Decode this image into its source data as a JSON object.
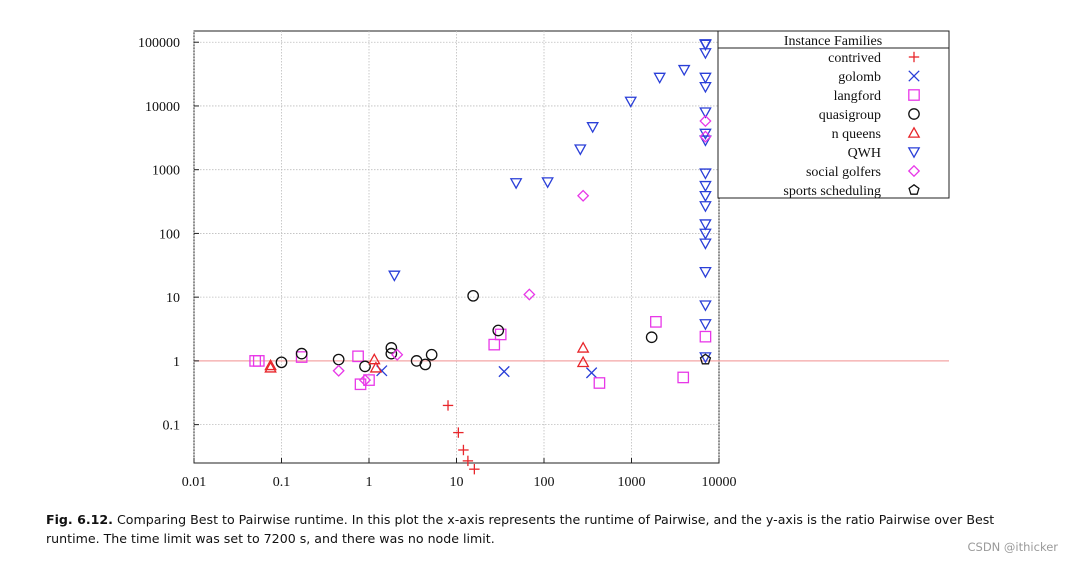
{
  "chart_data": {
    "type": "scatter",
    "title": "",
    "xlabel": "",
    "ylabel": "",
    "x_scale": "log",
    "y_scale": "log",
    "xlim": [
      0.01,
      10000
    ],
    "ylim": [
      0.025,
      150000
    ],
    "grid": true,
    "x_ticks": [
      "0.01",
      "0.1",
      "1",
      "10",
      "100",
      "1000",
      "10000"
    ],
    "y_ticks": [
      "0.1",
      "1",
      "10",
      "100",
      "1000",
      "10000",
      "100000"
    ],
    "reference_line": {
      "y": 1,
      "color": "#f4a6a6"
    },
    "legend": {
      "title": "Instance Families",
      "position": "top-right"
    },
    "series": [
      {
        "name": "contrived",
        "marker": "plus",
        "color": "#e8262b",
        "points": [
          [
            8,
            0.2
          ],
          [
            10.5,
            0.075
          ],
          [
            12,
            0.04
          ],
          [
            13.5,
            0.027
          ],
          [
            16,
            0.02
          ]
        ]
      },
      {
        "name": "golomb",
        "marker": "cross",
        "color": "#2a3fd8",
        "points": [
          [
            1.4,
            0.7
          ],
          [
            35,
            0.68
          ],
          [
            350,
            0.65
          ]
        ]
      },
      {
        "name": "langford",
        "marker": "square",
        "color": "#e838e8",
        "points": [
          [
            0.05,
            1.0
          ],
          [
            0.055,
            1.0
          ],
          [
            0.17,
            1.15
          ],
          [
            0.75,
            1.18
          ],
          [
            0.8,
            0.43
          ],
          [
            1.0,
            0.5
          ],
          [
            27,
            1.8
          ],
          [
            32,
            2.6
          ],
          [
            430,
            0.45
          ],
          [
            1900,
            4.1
          ],
          [
            3900,
            0.55
          ],
          [
            7000,
            2.4
          ]
        ]
      },
      {
        "name": "quasigroup",
        "marker": "circle",
        "color": "#111111",
        "points": [
          [
            0.1,
            0.95
          ],
          [
            0.17,
            1.3
          ],
          [
            0.45,
            1.05
          ],
          [
            0.9,
            0.82
          ],
          [
            1.8,
            1.3
          ],
          [
            1.8,
            1.6
          ],
          [
            3.5,
            1.0
          ],
          [
            4.4,
            0.88
          ],
          [
            5.2,
            1.25
          ],
          [
            15.5,
            10.5
          ],
          [
            30,
            3.0
          ],
          [
            1700,
            2.35
          ]
        ]
      },
      {
        "name": "n queens",
        "marker": "triangle",
        "color": "#e8262b",
        "points": [
          [
            0.075,
            0.85
          ],
          [
            0.075,
            0.78
          ],
          [
            1.15,
            1.05
          ],
          [
            1.2,
            0.78
          ],
          [
            280,
            1.6
          ],
          [
            280,
            0.95
          ]
        ]
      },
      {
        "name": "QWH",
        "marker": "triangle-down",
        "color": "#2a3fd8",
        "points": [
          [
            1.95,
            22
          ],
          [
            48,
            620
          ],
          [
            110,
            640
          ],
          [
            260,
            2100
          ],
          [
            360,
            4700
          ],
          [
            980,
            11800
          ],
          [
            2100,
            28000
          ],
          [
            4000,
            37000
          ],
          [
            7000,
            94000
          ],
          [
            7000,
            92000
          ],
          [
            7000,
            68000
          ],
          [
            7000,
            28000
          ],
          [
            7000,
            20000
          ],
          [
            7000,
            8000
          ],
          [
            7000,
            3700
          ],
          [
            7000,
            2900
          ],
          [
            7000,
            880
          ],
          [
            7000,
            560
          ],
          [
            7000,
            390
          ],
          [
            7000,
            270
          ],
          [
            7000,
            140
          ],
          [
            7000,
            100
          ],
          [
            7000,
            70
          ],
          [
            7000,
            25
          ],
          [
            7000,
            7.5
          ],
          [
            7000,
            3.8
          ],
          [
            7000,
            1.15
          ]
        ]
      },
      {
        "name": "social golfers",
        "marker": "diamond",
        "color": "#e838e8",
        "points": [
          [
            0.45,
            0.7
          ],
          [
            0.9,
            0.5
          ],
          [
            2.1,
            1.25
          ],
          [
            68,
            11
          ],
          [
            280,
            390
          ],
          [
            7000,
            5800
          ],
          [
            7000,
            3300
          ]
        ]
      },
      {
        "name": "sports scheduling",
        "marker": "pentagon",
        "color": "#111111",
        "points": [
          [
            7000,
            1.05
          ]
        ]
      }
    ]
  },
  "caption": {
    "label": "Fig. 6.12.",
    "text": "Comparing Best to Pairwise runtime. In this plot the x-axis represents the runtime of Pairwise, and the y-axis is the ratio Pairwise over Best runtime. The time limit was set to 7200 s, and there was no node limit."
  },
  "watermark": "CSDN @ithicker"
}
